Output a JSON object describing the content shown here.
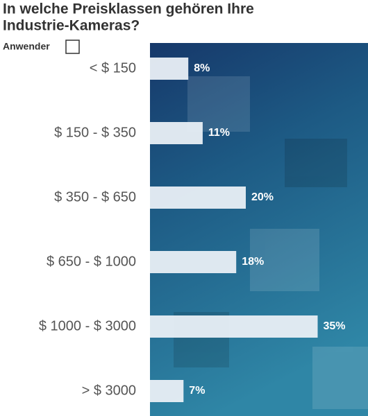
{
  "chart_data": {
    "type": "bar",
    "orientation": "horizontal",
    "title": "In welche Preisklassen gehören Ihre Industrie-Kameras?",
    "categories": [
      "< $ 150",
      "$ 150 - $ 350",
      "$ 350 - $ 650",
      "$ 650 - $ 1000",
      "$ 1000 - $ 3000",
      "> $ 3000"
    ],
    "series": [
      {
        "name": "Anwender",
        "color": "#e9eff5",
        "values": [
          8,
          11,
          20,
          18,
          35,
          7
        ],
        "value_labels": [
          "8%",
          "11%",
          "20%",
          "18%",
          "35%",
          "7%"
        ]
      }
    ]
  }
}
